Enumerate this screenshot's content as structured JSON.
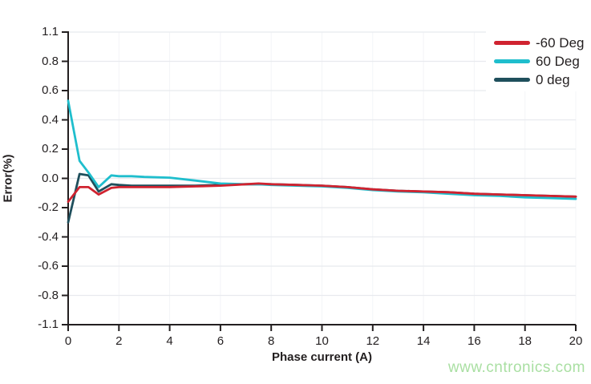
{
  "chart_data": {
    "type": "line",
    "title": "",
    "xlabel": "Phase current (A)",
    "ylabel": "Error(%)",
    "xlim": [
      0,
      20
    ],
    "ylim": [
      -1.1,
      1.1
    ],
    "x_tick_labels": [
      "0",
      "2",
      "4",
      "6",
      "8",
      "10",
      "12",
      "14",
      "16",
      "18",
      "20"
    ],
    "y_tick_labels": [
      "1.1",
      "0.8",
      "0.6",
      "0.4",
      "0.2",
      "0.0",
      "-0.2",
      "-0.4",
      "-0.6",
      "-0.8",
      "-1.1"
    ],
    "grid": "horizontal-light",
    "legend_position": "top-right",
    "x": [
      0,
      0.45,
      0.8,
      1.2,
      1.7,
      2,
      2.5,
      3,
      4,
      5,
      6,
      7,
      7.5,
      8,
      9,
      10,
      11,
      12,
      13,
      14,
      15,
      16,
      17,
      18,
      19,
      20
    ],
    "series": [
      {
        "name": "-60 Deg",
        "color": "#d02330",
        "values": [
          -0.16,
          -0.06,
          -0.06,
          -0.11,
          -0.065,
          -0.06,
          -0.06,
          -0.06,
          -0.06,
          -0.055,
          -0.05,
          -0.04,
          -0.035,
          -0.04,
          -0.045,
          -0.05,
          -0.06,
          -0.075,
          -0.085,
          -0.09,
          -0.095,
          -0.105,
          -0.11,
          -0.115,
          -0.12,
          -0.125
        ]
      },
      {
        "name": "60 Deg",
        "color": "#1fbecd",
        "values": [
          0.53,
          0.12,
          0.04,
          -0.06,
          0.02,
          0.015,
          0.015,
          0.01,
          0.005,
          -0.015,
          -0.035,
          -0.04,
          -0.04,
          -0.045,
          -0.05,
          -0.055,
          -0.065,
          -0.08,
          -0.09,
          -0.095,
          -0.105,
          -0.115,
          -0.12,
          -0.13,
          -0.135,
          -0.14
        ]
      },
      {
        "name": "0 deg",
        "color": "#1f4f5c",
        "values": [
          -0.3,
          0.03,
          0.02,
          -0.09,
          -0.04,
          -0.045,
          -0.05,
          -0.05,
          -0.05,
          -0.05,
          -0.045,
          -0.04,
          -0.04,
          -0.04,
          -0.045,
          -0.05,
          -0.06,
          -0.075,
          -0.085,
          -0.09,
          -0.095,
          -0.105,
          -0.11,
          -0.115,
          -0.12,
          -0.125
        ]
      }
    ],
    "colors": {
      "axis": "#231f20",
      "grid": "#e8eaee",
      "grid_faint": "#f3f4f7"
    }
  },
  "watermark": {
    "text": "www.cntronics.com",
    "color": "#a9dfa2"
  }
}
